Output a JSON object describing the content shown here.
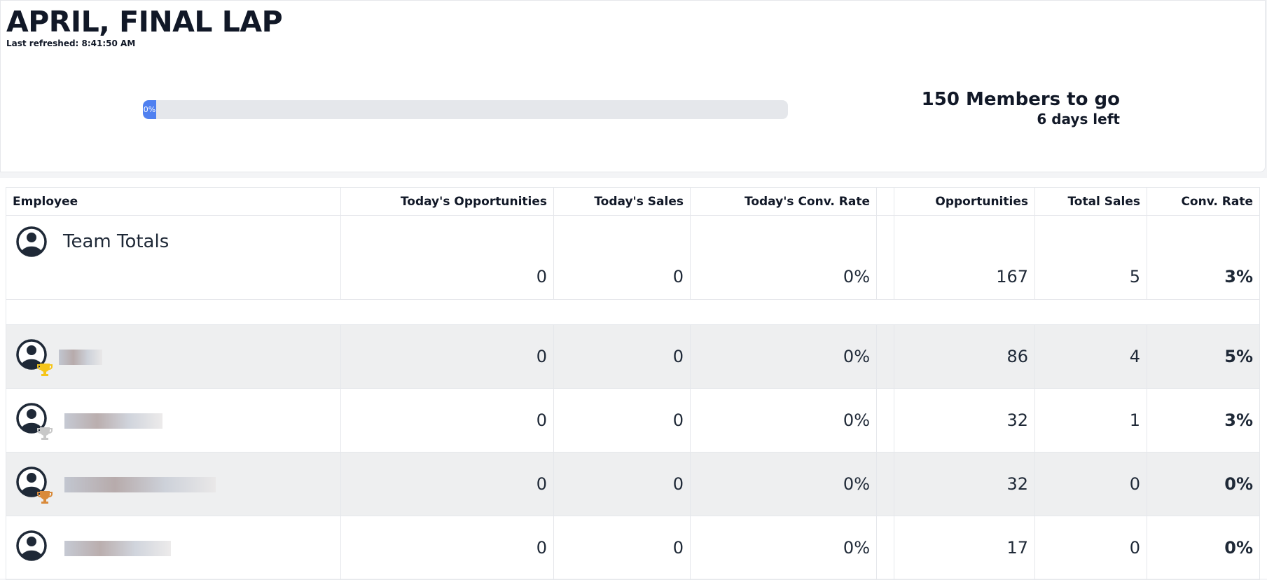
{
  "header": {
    "title": "APRIL, FINAL LAP",
    "last_refreshed": "Last refreshed: 8:41:50 AM"
  },
  "progress": {
    "label": "0%",
    "goal": "150 Members to go",
    "days_left": "6 days left"
  },
  "table": {
    "columns": [
      "Employee",
      "Today's Opportunities",
      "Today's Sales",
      "Today's Conv. Rate",
      "Opportunities",
      "Total Sales",
      "Conv. Rate"
    ],
    "totals": {
      "name": "Team Totals",
      "values": [
        "0",
        "0",
        "0%",
        "167",
        "5",
        "3%"
      ]
    },
    "rows": [
      [
        "0",
        "0",
        "0%",
        "86",
        "4",
        "5%"
      ],
      [
        "0",
        "0",
        "0%",
        "32",
        "1",
        "3%"
      ],
      [
        "0",
        "0",
        "0%",
        "32",
        "0",
        "0%"
      ],
      [
        "0",
        "0",
        "0%",
        "17",
        "0",
        "0%"
      ]
    ]
  }
}
